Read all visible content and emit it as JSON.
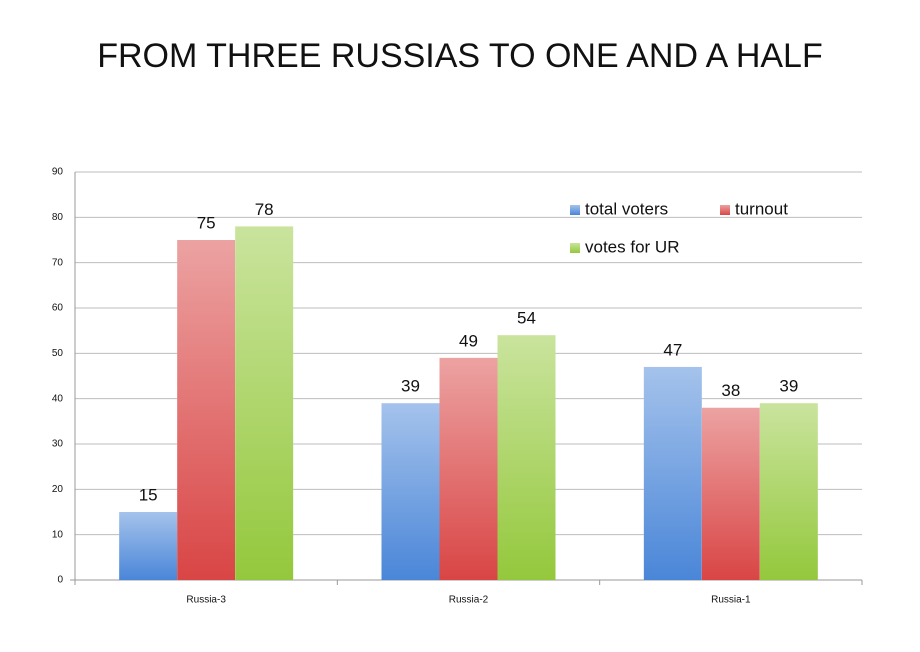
{
  "chart_data": {
    "type": "bar",
    "title": "FROM THREE RUSSIAS TO ONE AND A HALF",
    "categories": [
      "Russia-3",
      "Russia-2",
      "Russia-1"
    ],
    "series": [
      {
        "name": "total voters",
        "color": "#4a86d8",
        "values": [
          15,
          39,
          47
        ]
      },
      {
        "name": "turnout",
        "color": "#d94545",
        "values": [
          75,
          49,
          38
        ]
      },
      {
        "name": "votes for UR",
        "color": "#94c83c",
        "values": [
          78,
          54,
          39
        ]
      }
    ],
    "ylim": [
      0,
      90
    ],
    "yticks": [
      0,
      10,
      20,
      30,
      40,
      50,
      60,
      70,
      80,
      90
    ],
    "grid": true,
    "legend": "upper right"
  }
}
